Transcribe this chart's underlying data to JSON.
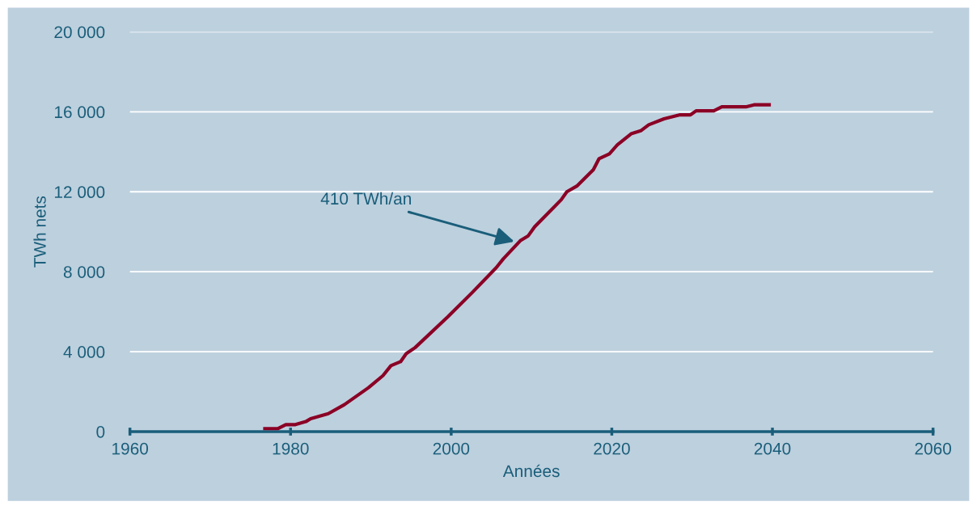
{
  "chart_data": {
    "type": "line",
    "xlabel": "Années",
    "ylabel": "TWh nets",
    "xlim": [
      1960,
      2060
    ],
    "xticks": [
      1960,
      1980,
      2000,
      2020,
      2040,
      2060
    ],
    "ylim": [
      0,
      20000
    ],
    "yticks": [
      0,
      {
        "value": 4000,
        "label": "4 000"
      },
      {
        "value": 8000,
        "label": "8 000"
      },
      {
        "value": 12000,
        "label": "12 000"
      },
      {
        "value": 16000,
        "label": "16 000"
      },
      {
        "value": 20000,
        "label": "20 000"
      }
    ],
    "grid": "y",
    "marker": "none",
    "line_style": "solid",
    "series": [
      {
        "color": "#8b0025",
        "x": [
          1976.8,
          1978.4,
          1979.4,
          1980.6,
          1981.9,
          1982.5,
          1984.7,
          1986.7,
          1989.7,
          1991.5,
          1992.5,
          1993.7,
          1994.4,
          1995.5,
          1999.6,
          2002.6,
          2005.6,
          2006.5,
          2008.6,
          2009.6,
          2010.4,
          2013.7,
          2014.4,
          2015.7,
          2017.7,
          2018.4,
          2019.7,
          2020.7,
          2022.4,
          2023.6,
          2024.6,
          2026.5,
          2028.5,
          2029.8,
          2030.5,
          2032.7,
          2033.7,
          2036.7,
          2037.7,
          2039.6
        ],
        "values": [
          150,
          150,
          350,
          350,
          500,
          650,
          900,
          1350,
          2200,
          2800,
          3300,
          3500,
          3900,
          4200,
          5750,
          6950,
          8200,
          8650,
          9550,
          9800,
          10250,
          11600,
          12000,
          12300,
          13100,
          13650,
          13900,
          14350,
          14900,
          15050,
          15350,
          15650,
          15850,
          15850,
          16050,
          16050,
          16250,
          16250,
          16350,
          16350
        ]
      }
    ],
    "annotations": [
      {
        "text": "410 TWh/an",
        "x": 2008.4,
        "y": 9450
      }
    ]
  }
}
